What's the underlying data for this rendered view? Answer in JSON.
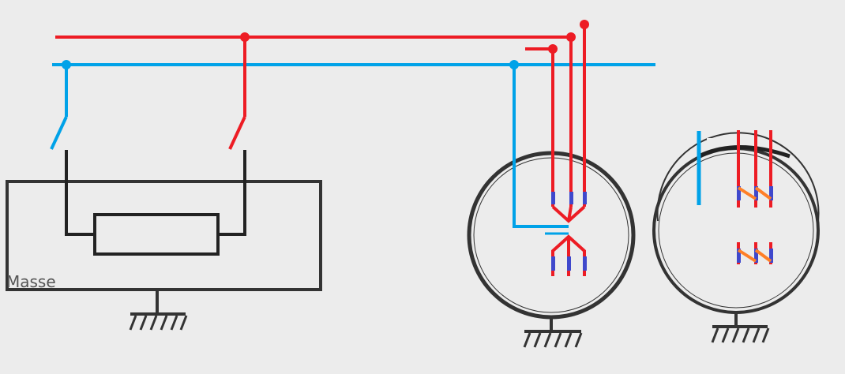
{
  "labels": {
    "masse": "Masse"
  },
  "colors": {
    "background": "#ececec",
    "phase": "#ed1c24",
    "neutral": "#00a2e8",
    "ground": "#333333",
    "enclosure": "#333333",
    "contact_blue": "#3f48cc",
    "contact_orange": "#ff7f27"
  },
  "icons": [
    "ground-symbol-icon",
    "switch-icon",
    "resistor-icon",
    "motor-icon"
  ]
}
